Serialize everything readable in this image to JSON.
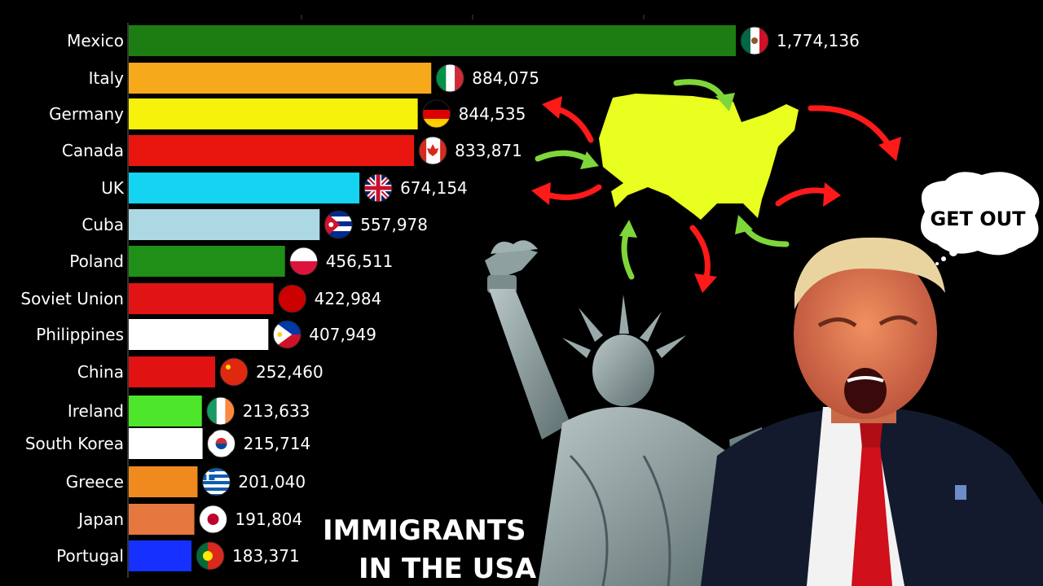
{
  "chart_data": {
    "type": "bar",
    "orientation": "horizontal",
    "title": "",
    "xlabel": "",
    "ylabel": "",
    "xlim": [
      0,
      2000000
    ],
    "grid": false,
    "legend": "none",
    "categories": [
      "Mexico",
      "Italy",
      "Germany",
      "Canada",
      "UK",
      "Cuba",
      "Poland",
      "Soviet Union",
      "Philippines",
      "China",
      "Ireland",
      "South Korea",
      "Greece",
      "Japan",
      "Portugal"
    ],
    "values": [
      1774136,
      884075,
      844535,
      833871,
      674154,
      557978,
      456511,
      422984,
      407949,
      252460,
      213633,
      215714,
      201040,
      191804,
      183371
    ],
    "value_labels": [
      "1,774,136",
      "884,075",
      "844,535",
      "833,871",
      "674,154",
      "557,978",
      "456,511",
      "422,984",
      "407,949",
      "252,460",
      "213,633",
      "215,714",
      "201,040",
      "191,804",
      "183,371"
    ],
    "colors": [
      "#1e7d12",
      "#f5a91b",
      "#f7f20b",
      "#e8160f",
      "#14d4f2",
      "#acd8e4",
      "#1f8f17",
      "#e01414",
      "#ffffff",
      "#e01212",
      "#4ee62a",
      "#ffffff",
      "#f08a1e",
      "#e5773f",
      "#1630ff"
    ],
    "flag_icons": [
      "mexico-flag-icon",
      "italy-flag-icon",
      "germany-flag-icon",
      "canada-flag-icon",
      "uk-flag-icon",
      "cuba-flag-icon",
      "poland-flag-icon",
      "soviet-union-flag-icon",
      "philippines-flag-icon",
      "china-flag-icon",
      "ireland-flag-icon",
      "south-korea-flag-icon",
      "greece-flag-icon",
      "japan-flag-icon",
      "portugal-flag-icon"
    ]
  },
  "caption": {
    "line1": "IMMIGRANTS",
    "line2": "IN THE USA"
  },
  "speech_bubble": {
    "text": "GET OUT"
  },
  "illustration": {
    "map_color": "#e9ff1f",
    "arrow_out_color": "#ff1a1a",
    "arrow_in_color": "#7fd63a"
  }
}
